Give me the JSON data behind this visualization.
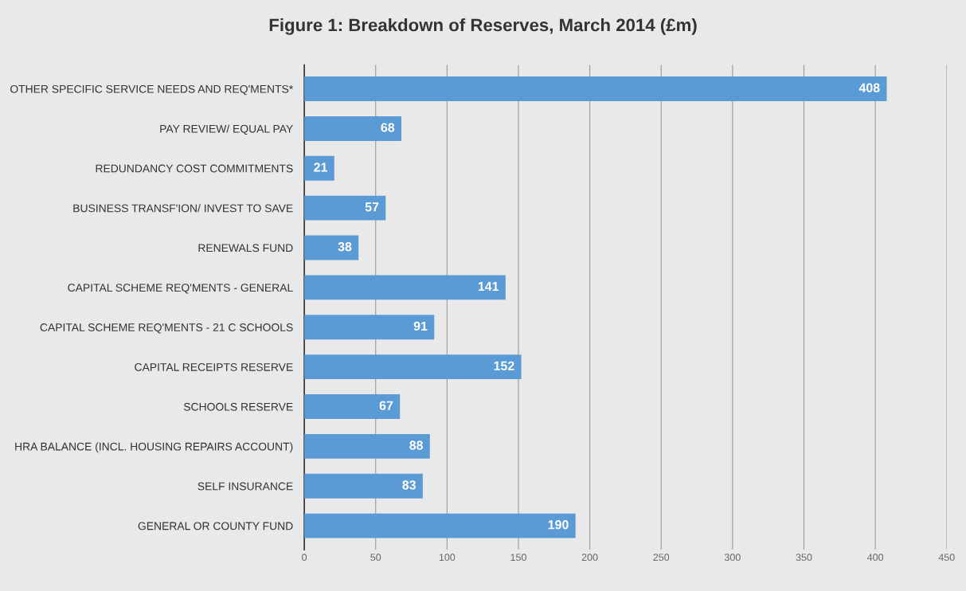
{
  "chart_data": {
    "type": "bar",
    "orientation": "horizontal",
    "title": "Figure 1: Breakdown of Reserves, March 2014 (£m)",
    "categories": [
      "OTHER SPECIFIC SERVICE NEEDS AND REQ'MENTS*",
      "PAY REVIEW/ EQUAL PAY",
      "REDUNDANCY COST COMMITMENTS",
      "BUSINESS TRANSF'ION/ INVEST TO SAVE",
      "RENEWALS FUND",
      "CAPITAL SCHEME REQ'MENTS - GENERAL",
      "CAPITAL SCHEME REQ'MENTS - 21 C SCHOOLS",
      "CAPITAL RECEIPTS RESERVE",
      "SCHOOLS RESERVE",
      "HRA BALANCE (INCL. HOUSING REPAIRS ACCOUNT)",
      "SELF INSURANCE",
      "GENERAL OR COUNTY FUND"
    ],
    "values": [
      408,
      68,
      21,
      57,
      38,
      141,
      91,
      152,
      67,
      88,
      83,
      190
    ],
    "color": "#5b9bd5",
    "xlim": [
      0,
      450
    ],
    "xticks": [
      0,
      50,
      100,
      150,
      200,
      250,
      300,
      350,
      400,
      450
    ],
    "grid": "x",
    "data_labels": true
  }
}
